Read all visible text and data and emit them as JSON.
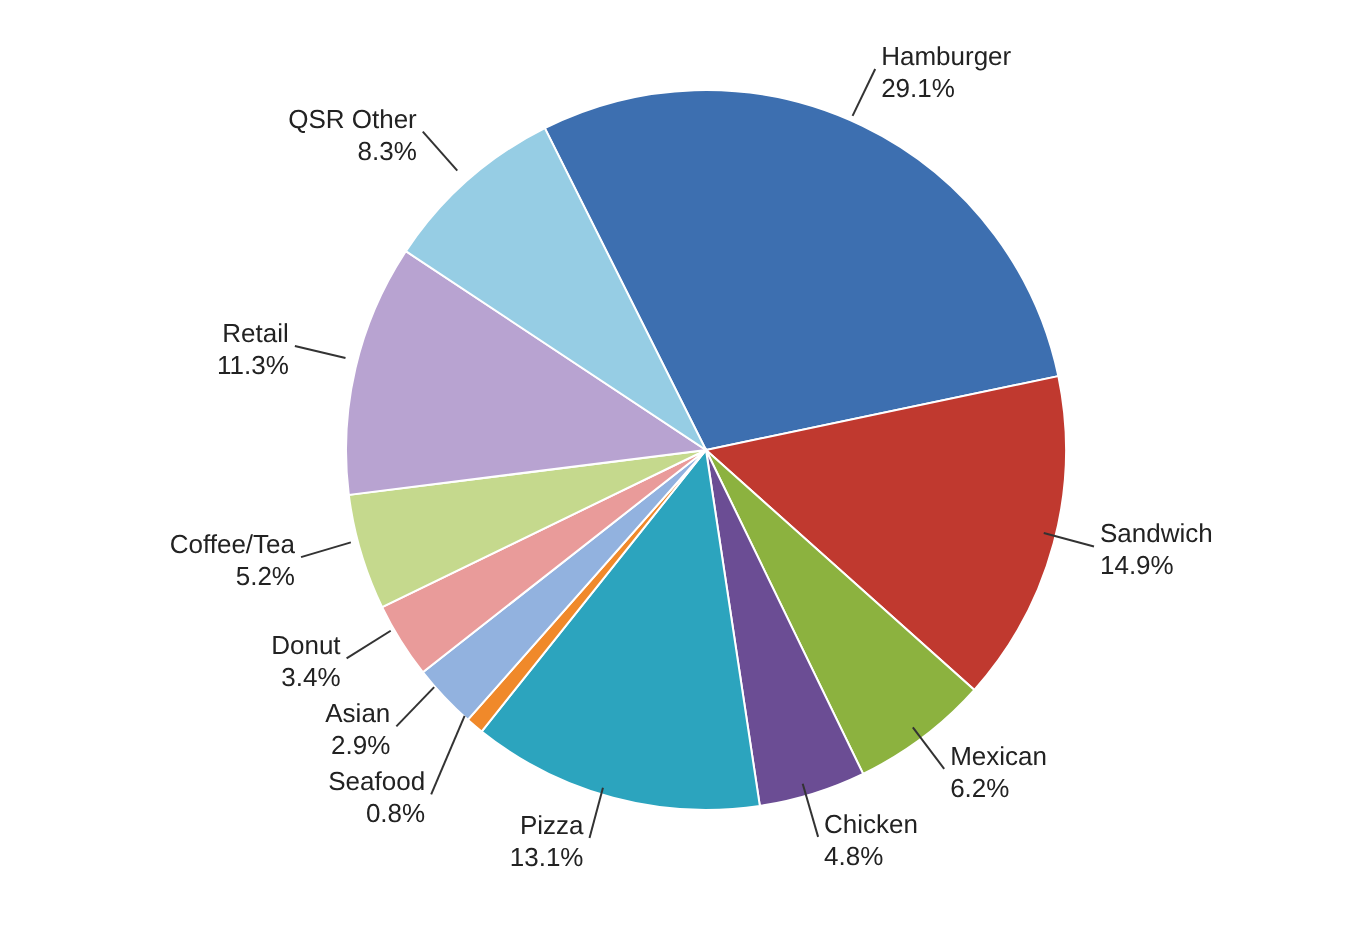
{
  "chart_data": {
    "type": "pie",
    "categories": [
      "Hamburger",
      "Sandwich",
      "Mexican",
      "Chicken",
      "Pizza",
      "Seafood",
      "Asian",
      "Donut",
      "Coffee/Tea",
      "Retail",
      "QSR Other"
    ],
    "values": [
      29.1,
      14.9,
      6.2,
      4.8,
      13.1,
      0.8,
      2.9,
      3.4,
      5.2,
      11.3,
      8.3
    ],
    "value_labels": [
      "29.1%",
      "14.9%",
      "6.2%",
      "4.8%",
      "13.1%",
      "0.8%",
      "2.9%",
      "3.4%",
      "5.2%",
      "11.3%",
      "8.3%"
    ],
    "colors": [
      "#3d6fb0",
      "#c0392f",
      "#8cb23f",
      "#6b4d94",
      "#2ca4be",
      "#f0892a",
      "#92b2df",
      "#e99b9a",
      "#c5d98d",
      "#b8a3d1",
      "#96cde4"
    ]
  }
}
